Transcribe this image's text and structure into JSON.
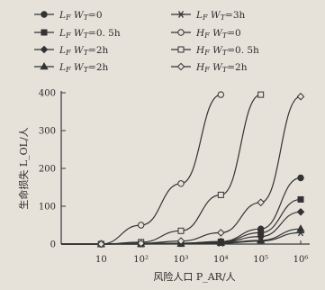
{
  "chart_data": {
    "type": "line",
    "x_scale": "log",
    "x": [
      1,
      10,
      100,
      1000,
      10000,
      100000,
      1000000
    ],
    "x_tick_labels": [
      "10",
      "10²",
      "10³",
      "10⁴",
      "10⁵",
      "10⁶"
    ],
    "xlabel": "风险人口 P_AR/人",
    "ylabel": "生命损失 L_OL/人",
    "ylim": [
      0,
      400
    ],
    "y_ticks": [
      0,
      100,
      200,
      300,
      400
    ],
    "grid": false,
    "legend_position": "top",
    "series": [
      {
        "name": "L_F W_T=0",
        "marker": "filled-circle",
        "values": [
          0,
          0,
          1,
          2,
          7,
          40,
          175
        ]
      },
      {
        "name": "L_F W_T=0.5h",
        "marker": "filled-square",
        "values": [
          0,
          0,
          1,
          2,
          6,
          30,
          118
        ]
      },
      {
        "name": "L_F W_T=2h",
        "marker": "filled-diamond",
        "values": [
          0,
          0,
          1,
          2,
          5,
          20,
          85
        ]
      },
      {
        "name": "L_F W_T=2h",
        "marker": "filled-triangle",
        "values": [
          0,
          0,
          0,
          1,
          3,
          10,
          40
        ]
      },
      {
        "name": "L_F W_T=3h",
        "marker": "star",
        "values": [
          0,
          0,
          0,
          1,
          2,
          8,
          30
        ]
      },
      {
        "name": "H_F W_T=0",
        "marker": "open-circle",
        "values": [
          0,
          0,
          50,
          160,
          395,
          null,
          null
        ]
      },
      {
        "name": "H_F W_T=0.5h",
        "marker": "open-square",
        "values": [
          0,
          0,
          5,
          35,
          130,
          395,
          null
        ]
      },
      {
        "name": "H_F W_T=2h",
        "marker": "open-diamond",
        "values": [
          0,
          0,
          2,
          8,
          30,
          110,
          390
        ]
      }
    ]
  },
  "legend": [
    {
      "prefix": "L",
      "sub1": "F",
      "mid": " W",
      "sub2": "T",
      "rest": "=0"
    },
    {
      "prefix": "L",
      "sub1": "F",
      "mid": " W",
      "sub2": "T",
      "rest": "=0. 5h"
    },
    {
      "prefix": "L",
      "sub1": "F",
      "mid": " W",
      "sub2": "T",
      "rest": "=2h"
    },
    {
      "prefix": "L",
      "sub1": "F",
      "mid": " W",
      "sub2": "T",
      "rest": "=2h"
    },
    {
      "prefix": "L",
      "sub1": "F",
      "mid": " W",
      "sub2": "T",
      "rest": "=3h"
    },
    {
      "prefix": "H",
      "sub1": "F",
      "mid": " W",
      "sub2": "T",
      "rest": "=0"
    },
    {
      "prefix": "H",
      "sub1": "F",
      "mid": " W",
      "sub2": "T",
      "rest": "=0. 5h"
    },
    {
      "prefix": "H",
      "sub1": "F",
      "mid": " W",
      "sub2": "T",
      "rest": "=2h"
    }
  ],
  "colors": {
    "ink": "#333333",
    "background": "#e6e2da"
  }
}
